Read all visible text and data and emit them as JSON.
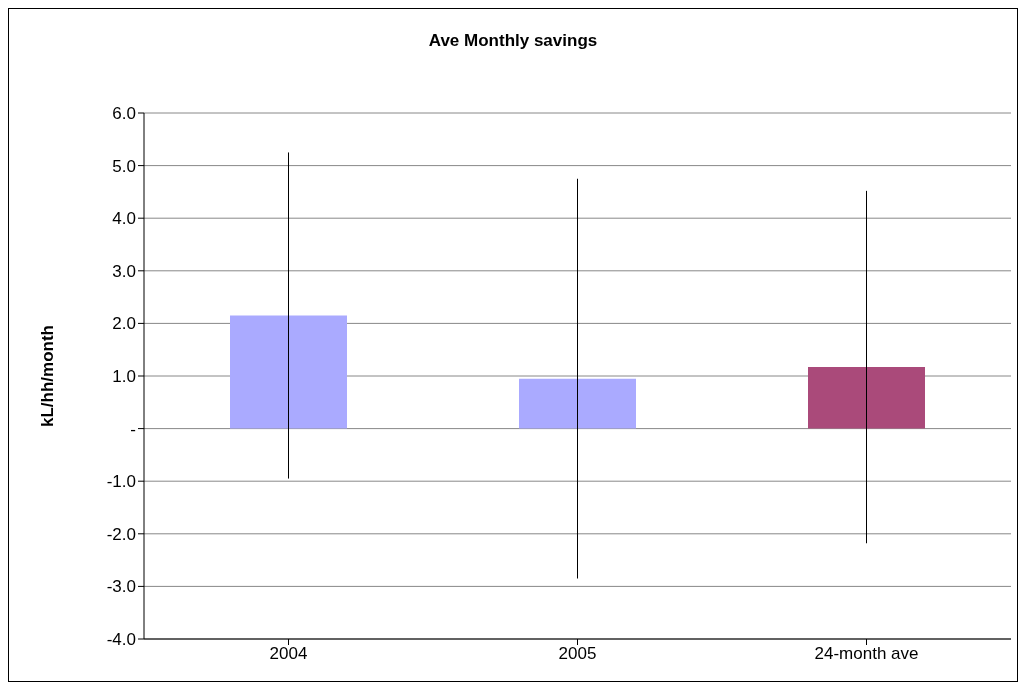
{
  "chart_data": {
    "type": "bar",
    "title": "Ave Monthly savings",
    "ylabel": "kL/hh/month",
    "categories": [
      "2004",
      "2005",
      "24-month ave"
    ],
    "values": [
      2.15,
      0.95,
      1.17
    ],
    "colors": [
      "#aaaaff",
      "#aaaaff",
      "#aa4a7a"
    ],
    "errors": [
      3.1,
      3.8,
      3.35
    ],
    "ylim": [
      -4,
      6
    ],
    "yticks": [
      {
        "value": -4,
        "label": "-4.0"
      },
      {
        "value": -3,
        "label": "-3.0"
      },
      {
        "value": -2,
        "label": "-2.0"
      },
      {
        "value": -1,
        "label": "-1.0"
      },
      {
        "value": 0,
        "label": "-"
      },
      {
        "value": 1,
        "label": "1.0"
      },
      {
        "value": 2,
        "label": "2.0"
      },
      {
        "value": 3,
        "label": "3.0"
      },
      {
        "value": 4,
        "label": "4.0"
      },
      {
        "value": 5,
        "label": "5.0"
      },
      {
        "value": 6,
        "label": "6.0"
      }
    ],
    "grid": "y",
    "legend": false
  }
}
